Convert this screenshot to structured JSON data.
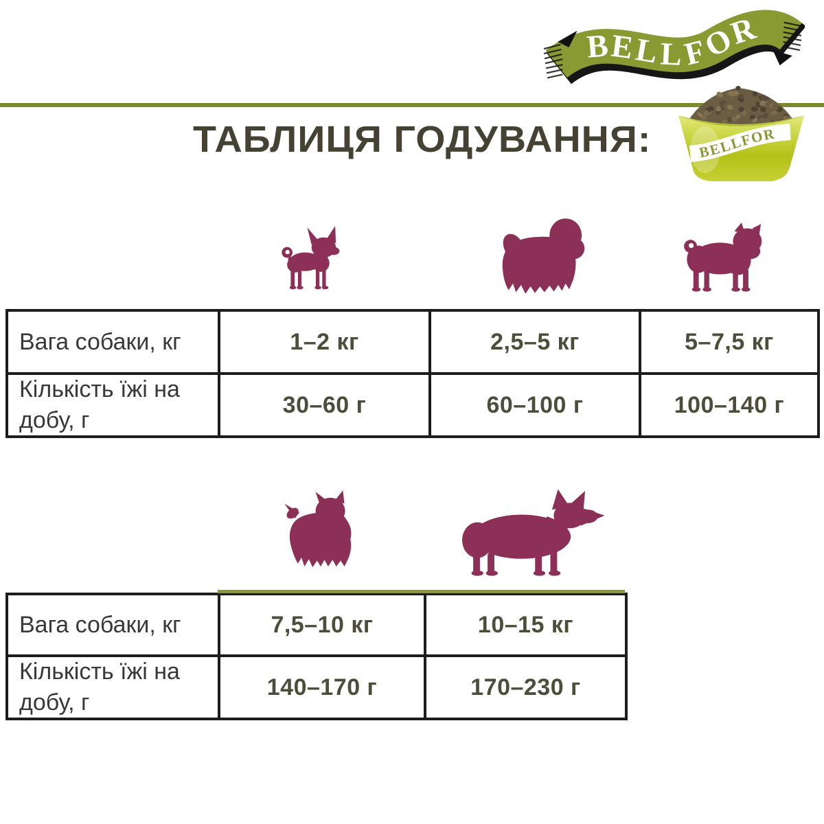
{
  "header": {
    "logo_text": "BELLFOR",
    "title": "ТАБЛИЦЯ ГОДУВАННЯ:",
    "bowl_text": "BELLFOR"
  },
  "colors": {
    "olive_line": "#7c8a2e",
    "logo_ribbon_olive": "#8a9a33",
    "title_text": "#454233",
    "dog_silhouette": "#8c3058",
    "table_border": "#1d1d1d",
    "label_text": "#383838",
    "value_text": "#4d4d3a",
    "bowl_yellow_green": "#bcc72b",
    "kibble_brown": "#6b5d43"
  },
  "tables": [
    {
      "name": "small-breeds",
      "dog_icons": [
        "chihuahua-icon",
        "shih-tzu-icon",
        "pug-icon"
      ],
      "rows": [
        {
          "label": "Вага собаки, кг",
          "values": [
            "1–2 кг",
            "2,5–5 кг",
            "5–7,5 кг"
          ]
        },
        {
          "label": "Кількість їжі на добу, г",
          "values": [
            "30–60 г",
            "60–100 г",
            "100–140 г"
          ]
        }
      ]
    },
    {
      "name": "medium-breeds",
      "dog_icons": [
        "yorkshire-terrier-icon",
        "corgi-icon"
      ],
      "rows": [
        {
          "label": "Вага собаки, кг",
          "values": [
            "7,5–10 кг",
            "10–15 кг"
          ]
        },
        {
          "label": "Кількість їжі на добу, г",
          "values": [
            "140–170 г",
            "170–230 г"
          ]
        }
      ]
    }
  ],
  "chart_data": {
    "type": "table",
    "title": "ТАБЛИЦЯ ГОДУВАННЯ:",
    "tables": [
      {
        "rows": [
          {
            "label": "Вага собаки, кг",
            "values": [
              "1–2 кг",
              "2,5–5 кг",
              "5–7,5 кг"
            ]
          },
          {
            "label": "Кількість їжі на добу, г",
            "values": [
              "30–60 г",
              "60–100 г",
              "100–140 г"
            ]
          }
        ]
      },
      {
        "rows": [
          {
            "label": "Вага собаки, кг",
            "values": [
              "7,5–10 кг",
              "10–15 кг"
            ]
          },
          {
            "label": "Кількість їжі на добу, г",
            "values": [
              "140–170 г",
              "170–230 г"
            ]
          }
        ]
      }
    ]
  }
}
